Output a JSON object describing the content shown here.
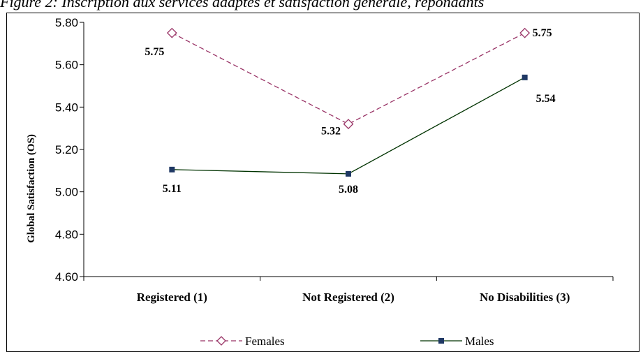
{
  "figure_caption": "Figure 2: Inscription aux services adaptés et satisfaction générale, répondants",
  "chart_data": {
    "type": "line",
    "title": "",
    "ylabel": "Global Satisfaction (OS)",
    "xlabel": "",
    "categories": [
      "Registered (1)",
      "Not Registered (2)",
      "No Disabilities (3)"
    ],
    "ylim": [
      4.6,
      5.8
    ],
    "yticks": [
      "4.60",
      "4.80",
      "5.00",
      "5.20",
      "5.40",
      "5.60",
      "5.80"
    ],
    "grid": false,
    "legend": "bottom",
    "series": [
      {
        "name": "Females",
        "values": [
          5.75,
          5.32,
          5.75
        ],
        "labels": [
          "5.75",
          "5.32",
          "5.75"
        ],
        "color": "#993366",
        "dash": "dashed",
        "marker": "diamond-open"
      },
      {
        "name": "Males",
        "values": [
          5.105,
          5.085,
          5.54
        ],
        "labels": [
          "5.11",
          "5.08",
          "5.54"
        ],
        "color": "#003300",
        "dash": "solid",
        "marker": "square",
        "marker_color": "#1f3864"
      }
    ]
  }
}
